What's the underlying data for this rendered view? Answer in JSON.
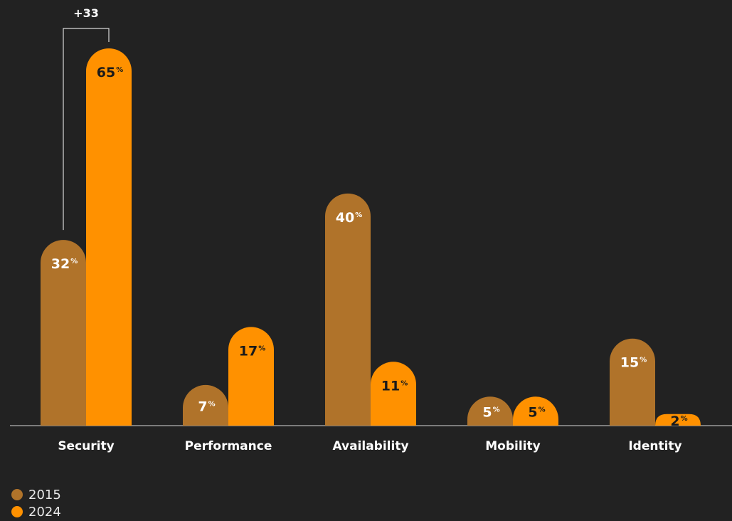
{
  "chart_data": {
    "type": "bar",
    "categories": [
      "Security",
      "Performance",
      "Availability",
      "Mobility",
      "Identity"
    ],
    "series": [
      {
        "name": "2015",
        "values": [
          32,
          7,
          40,
          5,
          15
        ],
        "color": "#b0732a"
      },
      {
        "name": "2024",
        "values": [
          65,
          17,
          11,
          5,
          2
        ],
        "color": "#ff9100"
      }
    ],
    "value_suffix": "%",
    "ylim": [
      0,
      65
    ],
    "grid": false,
    "legend_position": "bottom-left",
    "annotation": {
      "text": "+33",
      "category": "Security"
    }
  },
  "colors": {
    "background": "#222222",
    "text": "#ffffff",
    "axis": "#9a9a9a"
  }
}
